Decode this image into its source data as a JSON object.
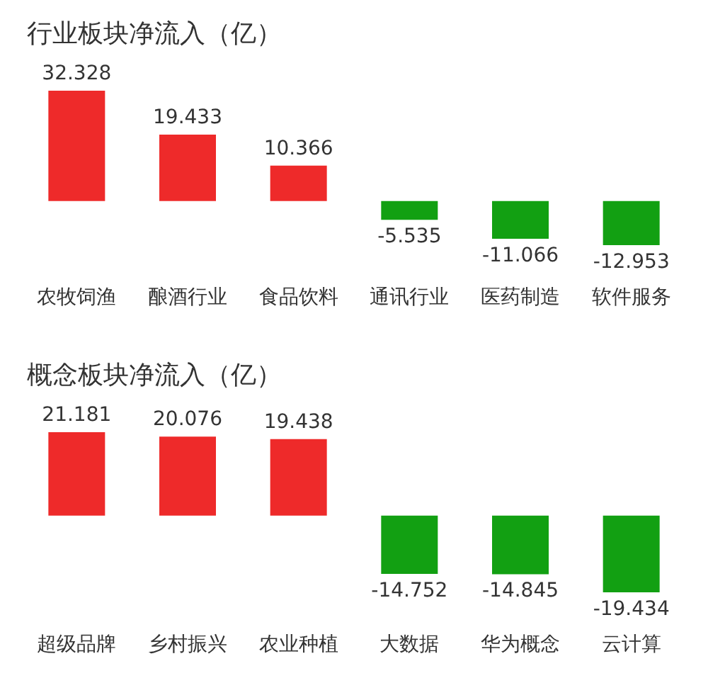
{
  "chart_data": [
    {
      "type": "bar",
      "title": "行业板块净流入（亿）",
      "categories": [
        "农牧饲渔",
        "酿酒行业",
        "食品饮料",
        "通讯行业",
        "医药制造",
        "软件服务"
      ],
      "values": [
        32.328,
        19.433,
        10.366,
        -5.535,
        -11.066,
        -12.953
      ],
      "colors": [
        "#ee2a2a",
        "#ee2a2a",
        "#ee2a2a",
        "#12a012",
        "#12a012",
        "#12a012"
      ],
      "data_labels": true
    },
    {
      "type": "bar",
      "title": "概念板块净流入（亿）",
      "categories": [
        "超级品牌",
        "乡村振兴",
        "农业种植",
        "大数据",
        "华为概念",
        "云计算"
      ],
      "values": [
        21.181,
        20.076,
        19.438,
        -14.752,
        -14.845,
        -19.434
      ],
      "colors": [
        "#ee2a2a",
        "#ee2a2a",
        "#ee2a2a",
        "#12a012",
        "#12a012",
        "#12a012"
      ],
      "data_labels": true
    }
  ]
}
